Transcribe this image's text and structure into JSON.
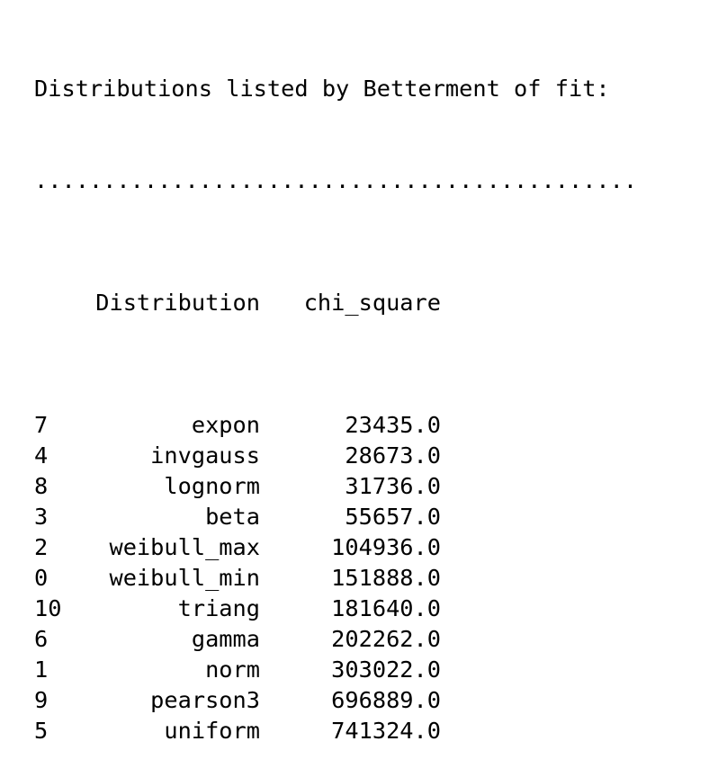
{
  "heading": "Distributions listed by Betterment of fit:",
  "separator": "............................................",
  "table": {
    "columns": [
      "Distribution",
      "chi_square"
    ],
    "rows": [
      {
        "index": "7",
        "distribution": "expon",
        "chi_square": "23435.0"
      },
      {
        "index": "4",
        "distribution": "invgauss",
        "chi_square": "28673.0"
      },
      {
        "index": "8",
        "distribution": "lognorm",
        "chi_square": "31736.0"
      },
      {
        "index": "3",
        "distribution": "beta",
        "chi_square": "55657.0"
      },
      {
        "index": "2",
        "distribution": "weibull_max",
        "chi_square": "104936.0"
      },
      {
        "index": "0",
        "distribution": "weibull_min",
        "chi_square": "151888.0"
      },
      {
        "index": "10",
        "distribution": "triang",
        "chi_square": "181640.0"
      },
      {
        "index": "6",
        "distribution": "gamma",
        "chi_square": "202262.0"
      },
      {
        "index": "1",
        "distribution": "norm",
        "chi_square": "303022.0"
      },
      {
        "index": "9",
        "distribution": "pearson3",
        "chi_square": "696889.0"
      },
      {
        "index": "5",
        "distribution": "uniform",
        "chi_square": "741324.0"
      }
    ]
  }
}
